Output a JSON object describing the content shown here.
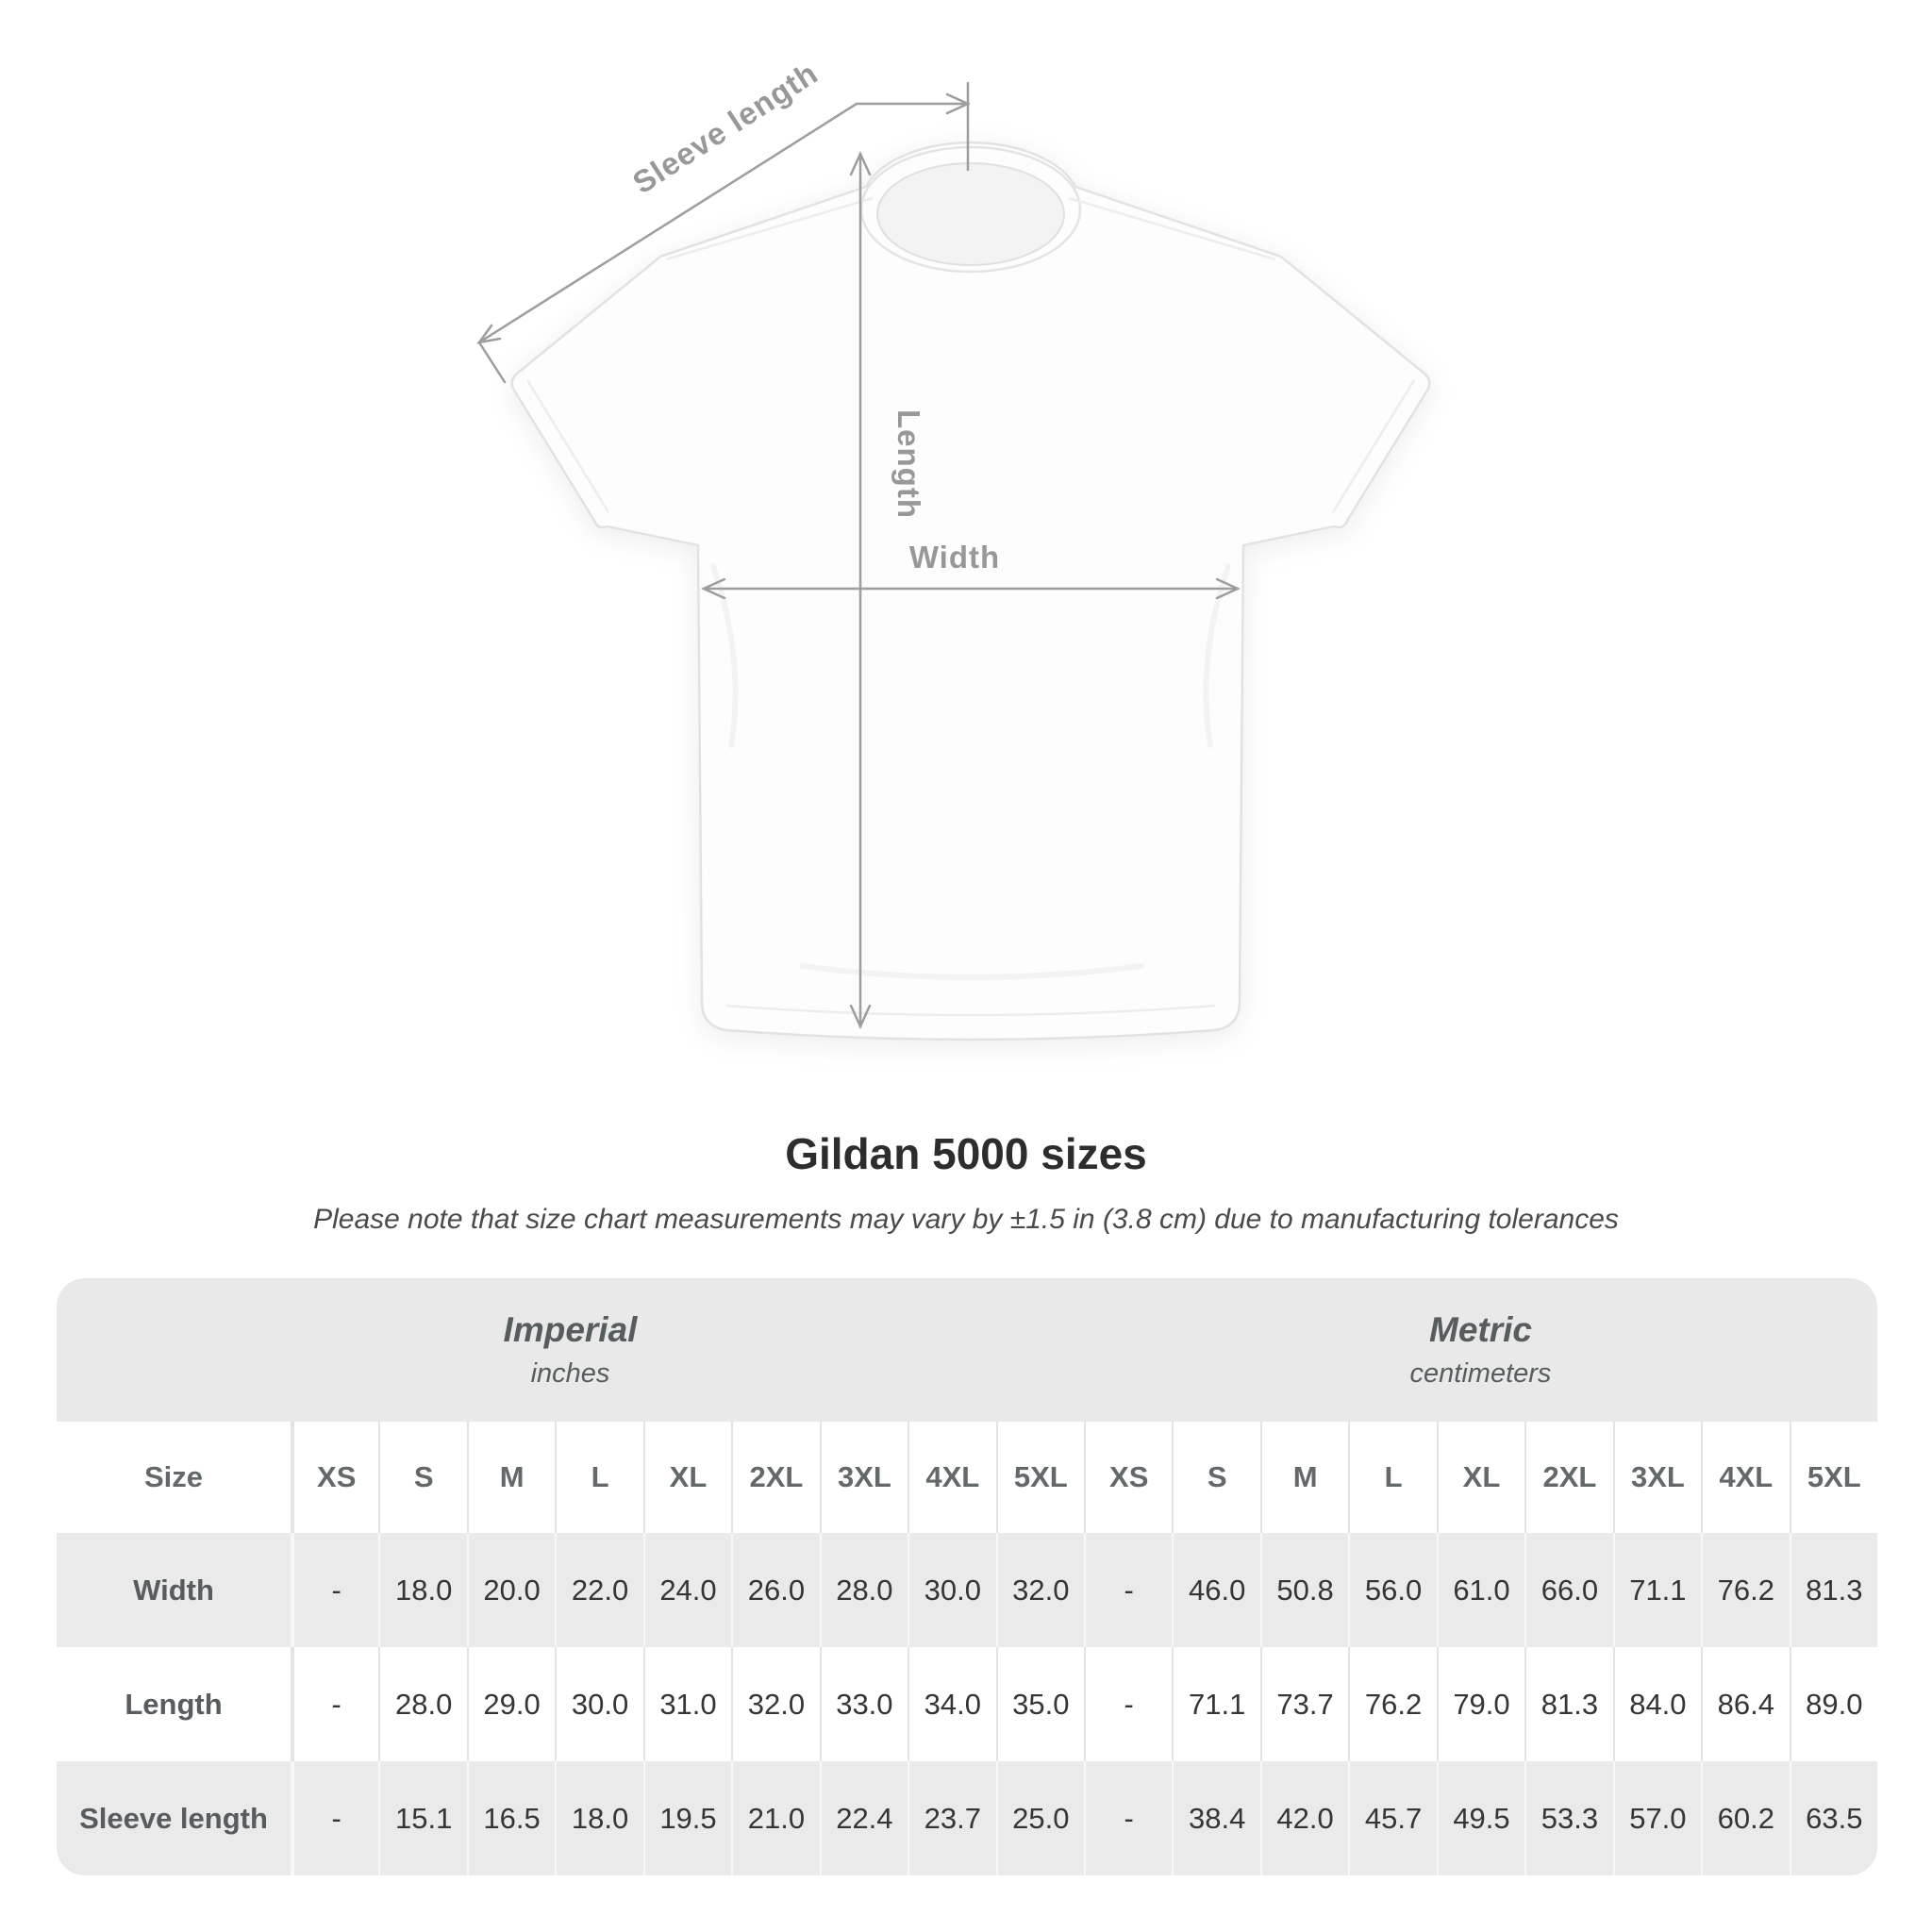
{
  "diagram": {
    "sleeve_length_label": "Sleeve length",
    "length_label": "Length",
    "width_label": "Width"
  },
  "header": {
    "title": "Gildan 5000 sizes",
    "subtitle": "Please note that size chart measurements may vary by ±1.5 in (3.8 cm) due to manufacturing tolerances"
  },
  "chart_data": {
    "type": "table",
    "title": "Gildan 5000 sizes",
    "note": "Please note that size chart measurements may vary by ±1.5 in (3.8 cm) due to manufacturing tolerances",
    "unit_groups": [
      {
        "label": "Imperial",
        "sublabel": "inches"
      },
      {
        "label": "Metric",
        "sublabel": "centimeters"
      }
    ],
    "size_col_header": "Size",
    "sizes": [
      "XS",
      "S",
      "M",
      "L",
      "XL",
      "2XL",
      "3XL",
      "4XL",
      "5XL"
    ],
    "rows": [
      {
        "label": "Width",
        "imperial": [
          "-",
          "18.0",
          "20.0",
          "22.0",
          "24.0",
          "26.0",
          "28.0",
          "30.0",
          "32.0"
        ],
        "metric": [
          "-",
          "46.0",
          "50.8",
          "56.0",
          "61.0",
          "66.0",
          "71.1",
          "76.2",
          "81.3"
        ]
      },
      {
        "label": "Length",
        "imperial": [
          "-",
          "28.0",
          "29.0",
          "30.0",
          "31.0",
          "32.0",
          "33.0",
          "34.0",
          "35.0"
        ],
        "metric": [
          "-",
          "71.1",
          "73.7",
          "76.2",
          "79.0",
          "81.3",
          "84.0",
          "86.4",
          "89.0"
        ]
      },
      {
        "label": "Sleeve length",
        "imperial": [
          "-",
          "15.1",
          "16.5",
          "18.0",
          "19.5",
          "21.0",
          "22.4",
          "23.7",
          "25.0"
        ],
        "metric": [
          "-",
          "38.4",
          "42.0",
          "45.7",
          "49.5",
          "53.3",
          "57.0",
          "60.2",
          "63.5"
        ]
      }
    ]
  },
  "colors": {
    "annotation_gray": "#9d9d9d",
    "band_background": "#e9e9e9",
    "row_alt_background": "#eaeaea",
    "title_text": "#2d2d2d",
    "table_value_text": "#353535",
    "table_label_text": "#575c5f"
  }
}
